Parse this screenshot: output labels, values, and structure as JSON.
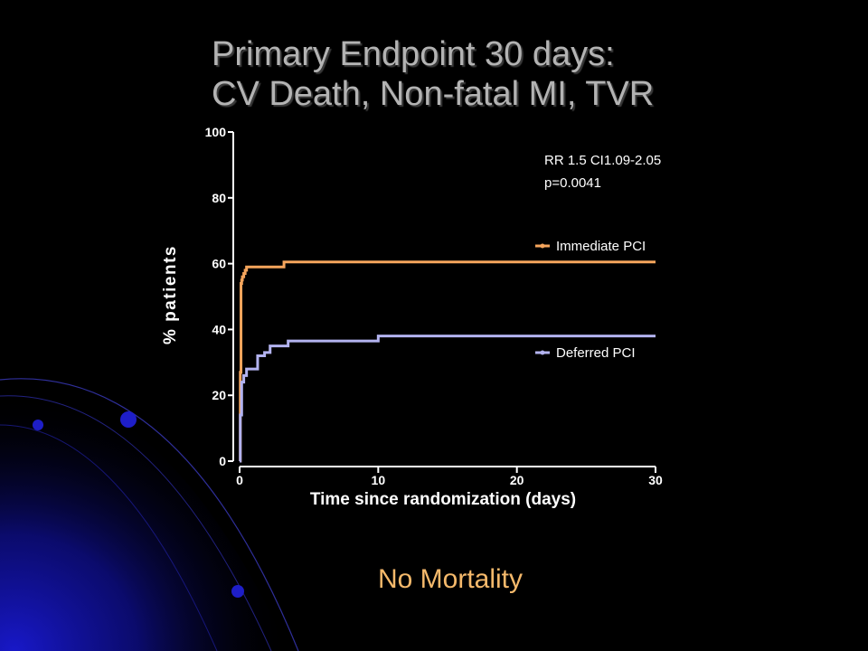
{
  "slide": {
    "title_line1": "Primary Endpoint 30 days:",
    "title_line2": "CV Death, Non-fatal MI, TVR",
    "footer_note": "No Mortality"
  },
  "colors": {
    "background": "#000000",
    "title": "#b3b3b3",
    "footer": "#f5b96b",
    "axis": "#ffffff",
    "immediate": "#f5a55c",
    "deferred": "#b3b3f0",
    "decor_blue": "#1a1aa8"
  },
  "chart_data": {
    "type": "line",
    "title": "",
    "xlabel": "Time since randomization (days)",
    "ylabel": "% patients",
    "xlim": [
      0,
      30
    ],
    "ylim": [
      0,
      100
    ],
    "xticks": [
      0,
      10,
      20,
      30
    ],
    "yticks": [
      0,
      20,
      40,
      60,
      80,
      100
    ],
    "grid": false,
    "legend_placement": "right",
    "annotations": [
      "RR 1.5 CI1.09-2.05",
      "p=0.0041"
    ],
    "series": [
      {
        "name": "Immediate PCI",
        "color": "#f5a55c",
        "step": true,
        "x": [
          0,
          0.05,
          0.1,
          0.15,
          0.2,
          0.3,
          0.4,
          0.5,
          0.6,
          3.2,
          30
        ],
        "y": [
          0,
          27,
          54,
          55,
          56,
          57,
          58,
          59,
          59,
          60.5,
          60.5
        ]
      },
      {
        "name": "Deferred PCI",
        "color": "#b3b3f0",
        "step": true,
        "x": [
          0,
          0.05,
          0.15,
          0.3,
          0.5,
          1.3,
          1.8,
          2.2,
          3.5,
          10,
          30
        ],
        "y": [
          0,
          14,
          24,
          26,
          28,
          32,
          33,
          35,
          36.5,
          38,
          38
        ]
      }
    ]
  }
}
